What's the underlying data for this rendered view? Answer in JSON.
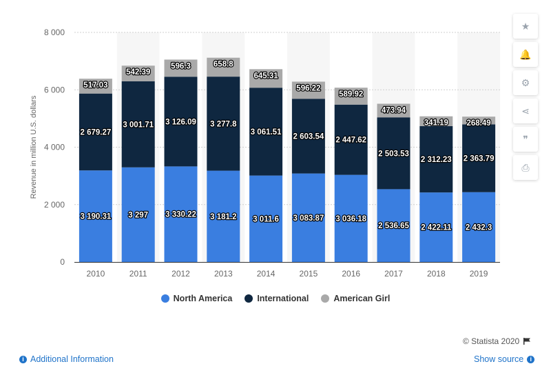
{
  "chart_data": {
    "type": "bar",
    "stacked": true,
    "categories": [
      "2010",
      "2011",
      "2012",
      "2013",
      "2014",
      "2015",
      "2016",
      "2017",
      "2018",
      "2019"
    ],
    "series": [
      {
        "name": "North America",
        "color": "#3a7ee0",
        "values": [
          3190.31,
          3297,
          3330.22,
          3181.2,
          3011.6,
          3083.87,
          3036.18,
          2536.65,
          2422.11,
          2432.3
        ],
        "labels": [
          "3 190.31",
          "3 297",
          "3 330.22",
          "3 181.2",
          "3 011.6",
          "3 083.87",
          "3 036.18",
          "2 536.65",
          "2 422.11",
          "2 432.3"
        ]
      },
      {
        "name": "International",
        "color": "#0f2740",
        "values": [
          2679.27,
          3001.71,
          3126.09,
          3277.8,
          3061.51,
          2603.54,
          2447.62,
          2503.53,
          2312.23,
          2363.79
        ],
        "labels": [
          "2 679.27",
          "3 001.71",
          "3 126.09",
          "3 277.8",
          "3 061.51",
          "2 603.54",
          "2 447.62",
          "2 503.53",
          "2 312.23",
          "2 363.79"
        ]
      },
      {
        "name": "American Girl",
        "color": "#a9a9a9",
        "values": [
          517.03,
          542.39,
          596.3,
          658.8,
          645.31,
          596.22,
          589.92,
          473.94,
          341.19,
          268.49
        ],
        "labels": [
          "517.03",
          "542.39",
          "596.3",
          "658.8",
          "645.31",
          "596.22",
          "589.92",
          "473.94",
          "341.19",
          "268.49"
        ]
      }
    ],
    "ylabel": "Revenue in million U.S. dollars",
    "ylim": [
      0,
      8000
    ],
    "yticks": [
      0,
      2000,
      4000,
      6000,
      8000
    ],
    "ytick_labels": [
      "0",
      "2 000",
      "4 000",
      "6 000",
      "8 000"
    ],
    "grid": true,
    "legend_position": "bottom"
  },
  "toolbar": [
    {
      "name": "favorite-button",
      "icon": "star-icon",
      "glyph": "★"
    },
    {
      "name": "notification-button",
      "icon": "bell-icon",
      "glyph": "🔔"
    },
    {
      "name": "settings-button",
      "icon": "gear-icon",
      "glyph": "⚙"
    },
    {
      "name": "share-button",
      "icon": "share-icon",
      "glyph": "⋖"
    },
    {
      "name": "cite-button",
      "icon": "quote-icon",
      "glyph": "❞"
    },
    {
      "name": "print-button",
      "icon": "print-icon",
      "glyph": "⎙"
    }
  ],
  "footer": {
    "credits": "© Statista 2020",
    "additional_info": "Additional Information",
    "show_source": "Show source"
  }
}
